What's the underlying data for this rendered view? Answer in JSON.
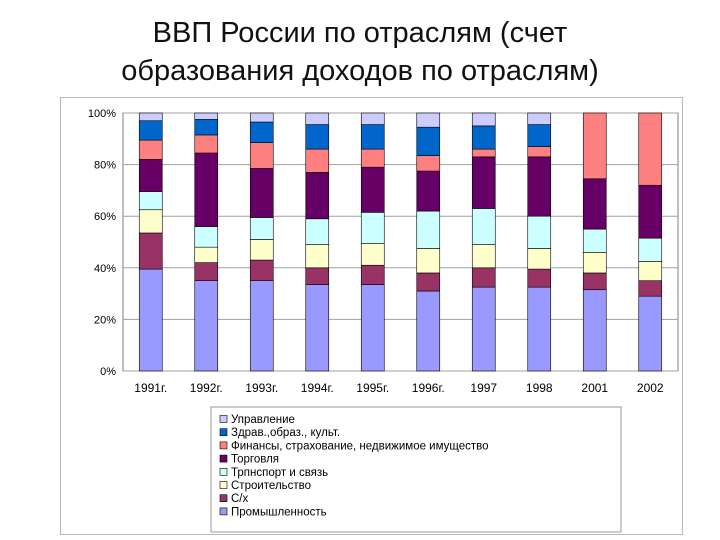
{
  "title_line1": "ВВП России по отраслям (счет",
  "title_line2": "образования доходов по отраслям)",
  "chart_data": {
    "type": "bar",
    "stacked": true,
    "percent": true,
    "categories": [
      "1991г.",
      "1992г.",
      "1993г.",
      "1994г.",
      "1995г.",
      "1996г.",
      "1997",
      "1998",
      "2001",
      "2002"
    ],
    "y_ticks": [
      "0%",
      "20%",
      "40%",
      "60%",
      "80%",
      "100%"
    ],
    "ylim": [
      0,
      100
    ],
    "grid": true,
    "legend_position": "bottom",
    "series": [
      {
        "name": "Промышленность",
        "color": "#9999ff",
        "values": [
          39.5,
          35,
          35,
          33.5,
          33.5,
          31,
          32.5,
          32.5,
          31.5,
          29
        ]
      },
      {
        "name": "С/х",
        "color": "#993366",
        "values": [
          14,
          7,
          8,
          6.5,
          7.5,
          7,
          7.5,
          7,
          6.5,
          6
        ]
      },
      {
        "name": "Строительство",
        "color": "#ffffcc",
        "values": [
          9,
          6,
          8,
          9,
          8.5,
          9.5,
          9,
          8,
          8,
          7.5
        ]
      },
      {
        "name": "Трпнспорт и связь",
        "color": "#ccffff",
        "values": [
          7,
          8,
          8.5,
          10,
          12,
          14.5,
          14,
          12.5,
          9,
          9
        ]
      },
      {
        "name": "Торговля",
        "color": "#660066",
        "values": [
          12.5,
          28.5,
          19,
          18,
          17.5,
          15.5,
          20,
          23,
          19.5,
          20.5
        ]
      },
      {
        "name": "Финансы, страхование, недвижимое имущество",
        "color": "#ff8080",
        "values": [
          7.5,
          7,
          10,
          9,
          7,
          6,
          3,
          4,
          25.5,
          28
        ]
      },
      {
        "name": "Здрав.,образ., культ.",
        "color": "#0066cc",
        "values": [
          7.5,
          6,
          8,
          9.5,
          9.5,
          11,
          9,
          8.5,
          0,
          0
        ]
      },
      {
        "name": "Управление",
        "color": "#ccccff",
        "values": [
          3,
          2.5,
          3.5,
          4.5,
          4.5,
          5.5,
          5,
          4.5,
          0,
          0
        ]
      }
    ]
  }
}
